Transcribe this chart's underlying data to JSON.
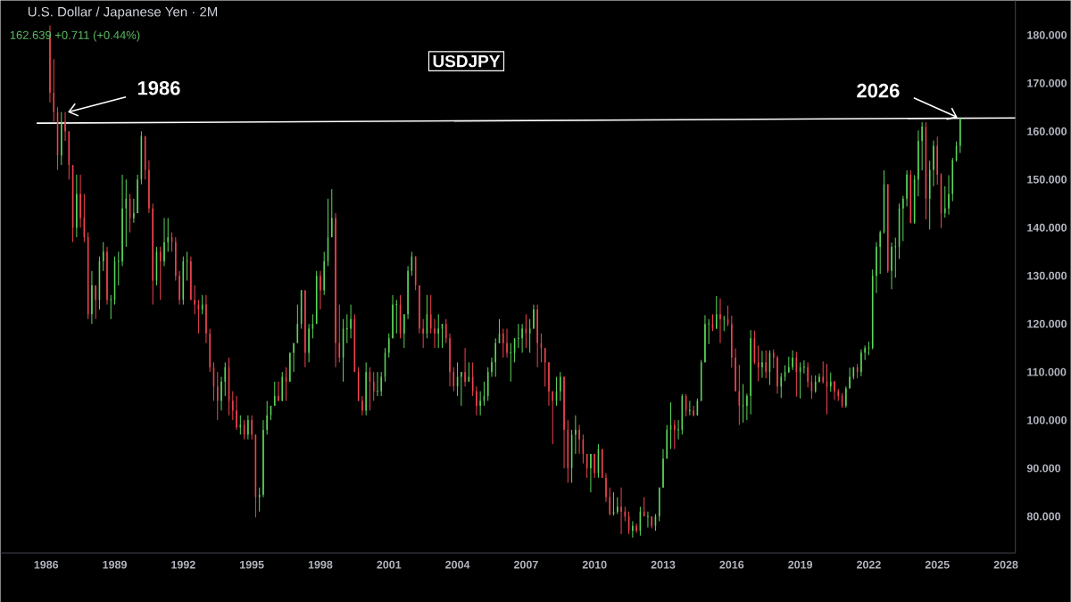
{
  "chart_data": {
    "type": "candlestick",
    "title": "U.S. Dollar / Japanese Yen · 2M",
    "subtitle": "162.639 +0.711 (+0.44%)",
    "colors": [
      "#f0444f",
      "#f0444f",
      "#f0444f",
      "#5bd65b",
      "#f0444f",
      "#f0444f",
      "#f0444f",
      "#5bd65b",
      "#f0444f",
      "#f0444f",
      "#f0444f",
      "#5bd65b",
      "#f0444f",
      "#5bd65b",
      "#5bd65b",
      "#f0444f",
      "#5bd65b",
      "#5bd65b",
      "#5bd65b",
      "#5bd65b",
      "#5bd65b",
      "#f0444f",
      "#5bd65b",
      "#5bd65b",
      "#5bd65b",
      "#f0444f",
      "#f0444f",
      "#f0444f",
      "#5bd65b",
      "#f0444f",
      "#5bd65b",
      "#5bd65b",
      "#f0444f",
      "#f0444f",
      "#f0444f",
      "#5bd65b",
      "#5bd65b",
      "#f0444f",
      "#f0444f",
      "#f0444f",
      "#5bd65b",
      "#f0444f",
      "#f0444f",
      "#f0444f",
      "#f0444f",
      "#5bd65b",
      "#5bd65b",
      "#f0444f",
      "#f0444f",
      "#f0444f",
      "#5bd65b",
      "#f0444f",
      "#5bd65b",
      "#f0444f",
      "#f0444f",
      "#5bd65b",
      "#5bd65b",
      "#5bd65b",
      "#5bd65b",
      "#5bd65b",
      "#f0444f",
      "#5bd65b",
      "#f0444f",
      "#5bd65b",
      "#5bd65b",
      "#5bd65b",
      "#5bd65b",
      "#f0444f",
      "#5bd65b",
      "#5bd65b",
      "#5bd65b",
      "#f0444f",
      "#5bd65b",
      "#5bd65b",
      "#5bd65b",
      "#f0444f",
      "#f0444f",
      "#5bd65b",
      "#5bd65b",
      "#5bd65b",
      "#f0444f",
      "#f0444f",
      "#f0444f",
      "#5bd65b",
      "#f0444f",
      "#f0444f",
      "#5bd65b",
      "#5bd65b",
      "#5bd65b",
      "#5bd65b",
      "#5bd65b",
      "#5bd65b",
      "#f0444f",
      "#5bd65b",
      "#5bd65b",
      "#5bd65b",
      "#f0444f",
      "#f0444f",
      "#f0444f",
      "#5bd65b",
      "#f0444f",
      "#f0444f",
      "#5bd65b",
      "#5bd65b",
      "#f0444f",
      "#f0444f",
      "#f0444f",
      "#5bd65b",
      "#5bd65b",
      "#f0444f",
      "#5bd65b",
      "#f0444f",
      "#f0444f",
      "#5bd65b",
      "#5bd65b",
      "#5bd65b",
      "#5bd65b",
      "#5bd65b",
      "#5bd65b",
      "#f0444f",
      "#f0444f",
      "#5bd65b",
      "#5bd65b",
      "#5bd65b",
      "#5bd65b",
      "#f0444f",
      "#5bd65b",
      "#5bd65b",
      "#f0444f",
      "#f0444f",
      "#f0444f",
      "#f0444f",
      "#f0444f",
      "#5bd65b",
      "#5bd65b",
      "#f0444f",
      "#f0444f",
      "#5bd65b",
      "#5bd65b",
      "#f0444f",
      "#f0444f",
      "#f0444f",
      "#5bd65b",
      "#f0444f",
      "#5bd65b",
      "#f0444f",
      "#f0444f",
      "#f0444f",
      "#5bd65b",
      "#5bd65b",
      "#f0444f",
      "#f0444f",
      "#f0444f",
      "#5bd65b",
      "#f0444f",
      "#5bd65b",
      "#f0444f",
      "#5bd65b",
      "#f0444f",
      "#5bd65b",
      "#5bd65b",
      "#5bd65b",
      "#5bd65b",
      "#5bd65b",
      "#f0444f",
      "#5bd65b",
      "#5bd65b",
      "#f0444f",
      "#5bd65b",
      "#f0444f",
      "#5bd65b",
      "#5bd65b",
      "#5bd65b",
      "#5bd65b",
      "#f0444f",
      "#5bd65b",
      "#f0444f",
      "#5bd65b",
      "#f0444f",
      "#f0444f",
      "#f0444f",
      "#f0444f",
      "#5bd65b",
      "#5bd65b",
      "#5bd65b",
      "#f0444f",
      "#f0444f",
      "#5bd65b",
      "#f0444f",
      "#5bd65b",
      "#f0444f",
      "#f0444f",
      "#5bd65b",
      "#5bd65b",
      "#5bd65b",
      "#5bd65b",
      "#f0444f",
      "#5bd65b",
      "#5bd65b",
      "#f0444f",
      "#f0444f",
      "#5bd65b",
      "#5bd65b",
      "#f0444f",
      "#f0444f",
      "#5bd65b",
      "#f0444f",
      "#f0444f",
      "#f0444f",
      "#5bd65b",
      "#5bd65b",
      "#5bd65b",
      "#f0444f",
      "#5bd65b",
      "#5bd65b",
      "#5bd65b",
      "#5bd65b",
      "#5bd65b",
      "#5bd65b",
      "#5bd65b",
      "#f0444f",
      "#5bd65b",
      "#5bd65b",
      "#5bd65b",
      "#5bd65b",
      "#5bd65b",
      "#f0444f",
      "#5bd65b",
      "#5bd65b",
      "#5bd65b",
      "#f0444f",
      "#5bd65b",
      "#5bd65b",
      "#f0444f",
      "#f0444f",
      "#5bd65b",
      "#5bd65b",
      "#5bd65b",
      "#5bd65b",
      "#5bd65b"
    ],
    "x": [
      "1986-03",
      "1986-05",
      "1986-07",
      "1986-09",
      "1986-11",
      "1987-01",
      "1987-03",
      "1987-05",
      "1987-07",
      "1987-09",
      "1987-11",
      "1988-01",
      "1988-03",
      "1988-05",
      "1988-07",
      "1988-09",
      "1988-11",
      "1989-01",
      "1989-03",
      "1989-05",
      "1989-07",
      "1989-09",
      "1989-11",
      "1990-01",
      "1990-03",
      "1990-05",
      "1990-07",
      "1990-09",
      "1990-11",
      "1991-01",
      "1991-03",
      "1991-05",
      "1991-07",
      "1991-09",
      "1991-11",
      "1992-01",
      "1992-03",
      "1992-05",
      "1992-07",
      "1992-09",
      "1992-11",
      "1993-01",
      "1993-03",
      "1993-05",
      "1993-07",
      "1993-09",
      "1993-11",
      "1994-01",
      "1994-03",
      "1994-05",
      "1994-07",
      "1994-09",
      "1994-11",
      "1995-01",
      "1995-03",
      "1995-05",
      "1995-07",
      "1995-09",
      "1995-11",
      "1996-01",
      "1996-03",
      "1996-05",
      "1996-07",
      "1996-09",
      "1996-11",
      "1997-01",
      "1997-03",
      "1997-05",
      "1997-07",
      "1997-09",
      "1997-11",
      "1998-01",
      "1998-03",
      "1998-05",
      "1998-07",
      "1998-09",
      "1998-11",
      "1999-01",
      "1999-03",
      "1999-05",
      "1999-07",
      "1999-09",
      "1999-11",
      "2000-01",
      "2000-03",
      "2000-05",
      "2000-07",
      "2000-09",
      "2000-11",
      "2001-01",
      "2001-03",
      "2001-05",
      "2001-07",
      "2001-09",
      "2001-11",
      "2002-01",
      "2002-03",
      "2002-05",
      "2002-07",
      "2002-09",
      "2002-11",
      "2003-01",
      "2003-03",
      "2003-05",
      "2003-07",
      "2003-09",
      "2003-11",
      "2004-01",
      "2004-03",
      "2004-05",
      "2004-07",
      "2004-09",
      "2004-11",
      "2005-01",
      "2005-03",
      "2005-05",
      "2005-07",
      "2005-09",
      "2005-11",
      "2006-01",
      "2006-03",
      "2006-05",
      "2006-07",
      "2006-09",
      "2006-11",
      "2007-01",
      "2007-03",
      "2007-05",
      "2007-07",
      "2007-09",
      "2007-11",
      "2008-01",
      "2008-03",
      "2008-05",
      "2008-07",
      "2008-09",
      "2008-11",
      "2009-01",
      "2009-03",
      "2009-05",
      "2009-07",
      "2009-09",
      "2009-11",
      "2010-01",
      "2010-03",
      "2010-05",
      "2010-07",
      "2010-09",
      "2010-11",
      "2011-01",
      "2011-03",
      "2011-05",
      "2011-07",
      "2011-09",
      "2011-11",
      "2012-01",
      "2012-03",
      "2012-05",
      "2012-07",
      "2012-09",
      "2012-11",
      "2013-01",
      "2013-03",
      "2013-05",
      "2013-07",
      "2013-09",
      "2013-11",
      "2014-01",
      "2014-03",
      "2014-05",
      "2014-07",
      "2014-09",
      "2014-11",
      "2015-01",
      "2015-03",
      "2015-05",
      "2015-07",
      "2015-09",
      "2015-11",
      "2016-01",
      "2016-03",
      "2016-05",
      "2016-07",
      "2016-09",
      "2016-11",
      "2017-01",
      "2017-03",
      "2017-05",
      "2017-07",
      "2017-09",
      "2017-11",
      "2018-01",
      "2018-03",
      "2018-05",
      "2018-07",
      "2018-09",
      "2018-11",
      "2019-01",
      "2019-03",
      "2019-05",
      "2019-07",
      "2019-09",
      "2019-11",
      "2020-01",
      "2020-03",
      "2020-05",
      "2020-07",
      "2020-09",
      "2020-11",
      "2021-01",
      "2021-03",
      "2021-05",
      "2021-07",
      "2021-09",
      "2021-11",
      "2022-01",
      "2022-03",
      "2022-05",
      "2022-07",
      "2022-09",
      "2022-11",
      "2023-01",
      "2023-03",
      "2023-05",
      "2023-07",
      "2023-09",
      "2023-11",
      "2024-01",
      "2024-03",
      "2024-05",
      "2024-07",
      "2024-09",
      "2024-11",
      "2025-01",
      "2025-03",
      "2025-05",
      "2025-07",
      "2025-09",
      "2025-11",
      "2026-01"
    ],
    "ohlc": [
      [
        180,
        182,
        166,
        168
      ],
      [
        168,
        175,
        162,
        164
      ],
      [
        164,
        165,
        152,
        155
      ],
      [
        155,
        164,
        153,
        162
      ],
      [
        162,
        164,
        158,
        160
      ],
      [
        160,
        160,
        150,
        153
      ],
      [
        153,
        153,
        137,
        140
      ],
      [
        140,
        151,
        138,
        147
      ],
      [
        147,
        151,
        140,
        142
      ],
      [
        142,
        147,
        137,
        138
      ],
      [
        138,
        139,
        121,
        122
      ],
      [
        122,
        131,
        120,
        128
      ],
      [
        128,
        128,
        121,
        125
      ],
      [
        125,
        134,
        123,
        133
      ],
      [
        133,
        137,
        131,
        135
      ],
      [
        135,
        136,
        124,
        125
      ],
      [
        125,
        126,
        121,
        125
      ],
      [
        125,
        134,
        124,
        133
      ],
      [
        133,
        135,
        128,
        133
      ],
      [
        133,
        151,
        132,
        144
      ],
      [
        144,
        150,
        136,
        146
      ],
      [
        146,
        147,
        139,
        142
      ],
      [
        142,
        146,
        141,
        143
      ],
      [
        143,
        151,
        143,
        150
      ],
      [
        150,
        160,
        149,
        159
      ],
      [
        159,
        159,
        150,
        152
      ],
      [
        152,
        154,
        143,
        144
      ],
      [
        144,
        145,
        124,
        129
      ],
      [
        129,
        136,
        128,
        135
      ],
      [
        135,
        136,
        125,
        133
      ],
      [
        133,
        142,
        132,
        137
      ],
      [
        137,
        142,
        135,
        138
      ],
      [
        138,
        139,
        135,
        137
      ],
      [
        137,
        138,
        129,
        130
      ],
      [
        130,
        131,
        124,
        125
      ],
      [
        125,
        134,
        124,
        133
      ],
      [
        133,
        135,
        129,
        133
      ],
      [
        133,
        134,
        125,
        125
      ],
      [
        125,
        128,
        122,
        124
      ],
      [
        124,
        125,
        118,
        123
      ],
      [
        123,
        126,
        122,
        124
      ],
      [
        124,
        126,
        116,
        118
      ],
      [
        118,
        119,
        110,
        111
      ],
      [
        111,
        112,
        104,
        107
      ],
      [
        107,
        110,
        100,
        104
      ],
      [
        104,
        109,
        102,
        108
      ],
      [
        108,
        112,
        105,
        111
      ],
      [
        111,
        113,
        101,
        104
      ],
      [
        104,
        106,
        100,
        102
      ],
      [
        102,
        105,
        98,
        98.5
      ],
      [
        98.5,
        101,
        97,
        99
      ],
      [
        99,
        100,
        96,
        97
      ],
      [
        97,
        101,
        96,
        100
      ],
      [
        100,
        101,
        96,
        97
      ],
      [
        97,
        97,
        79.8,
        84
      ],
      [
        84,
        86,
        81,
        84.5
      ],
      [
        84.5,
        100,
        84,
        98
      ],
      [
        98,
        104,
        97,
        101
      ],
      [
        101,
        103,
        100,
        103
      ],
      [
        103,
        108,
        103,
        105
      ],
      [
        105,
        108,
        104,
        104
      ],
      [
        104,
        110,
        104,
        109
      ],
      [
        109,
        111,
        104,
        108
      ],
      [
        108,
        114,
        108,
        114
      ],
      [
        114,
        116,
        110,
        116
      ],
      [
        116,
        124,
        116,
        120
      ],
      [
        120,
        127,
        119,
        127
      ],
      [
        127,
        127,
        111,
        114
      ],
      [
        114,
        120,
        112,
        119
      ],
      [
        119,
        122,
        117,
        120
      ],
      [
        120,
        131,
        120,
        130
      ],
      [
        130,
        131,
        123,
        127
      ],
      [
        127,
        135,
        126,
        133
      ],
      [
        133,
        146,
        132,
        138
      ],
      [
        138,
        148,
        138,
        142
      ],
      [
        142,
        143,
        111,
        116
      ],
      [
        116,
        124,
        112,
        113
      ],
      [
        113,
        121,
        108,
        119
      ],
      [
        119,
        122,
        116,
        119
      ],
      [
        119,
        124,
        117,
        121
      ],
      [
        121,
        122,
        110,
        110
      ],
      [
        110,
        111,
        104,
        104
      ],
      [
        104,
        105,
        101,
        102
      ],
      [
        102,
        112,
        101,
        110
      ],
      [
        110,
        111,
        102,
        108
      ],
      [
        108,
        110,
        104,
        106
      ],
      [
        106,
        110,
        105,
        106
      ],
      [
        106,
        110,
        105,
        109
      ],
      [
        109,
        115,
        108,
        114
      ],
      [
        114,
        118,
        113,
        117
      ],
      [
        117,
        126,
        117,
        124
      ],
      [
        124,
        125,
        118,
        124
      ],
      [
        124,
        126,
        117,
        118
      ],
      [
        118,
        122,
        115,
        122
      ],
      [
        122,
        132,
        121,
        131
      ],
      [
        131,
        135,
        130,
        134
      ],
      [
        134,
        134,
        127,
        128
      ],
      [
        128,
        128,
        118,
        119
      ],
      [
        119,
        121,
        115,
        118
      ],
      [
        118,
        126,
        117,
        122
      ],
      [
        122,
        126,
        118,
        119
      ],
      [
        119,
        121,
        115,
        118
      ],
      [
        118,
        122,
        115,
        119
      ],
      [
        119,
        120,
        115,
        120
      ],
      [
        120,
        121,
        116,
        117
      ],
      [
        117,
        118,
        107,
        110
      ],
      [
        110,
        111,
        106,
        107
      ],
      [
        107,
        112,
        105,
        109
      ],
      [
        109,
        110,
        103,
        110
      ],
      [
        110,
        115,
        107,
        108
      ],
      [
        108,
        112,
        108,
        109
      ],
      [
        109,
        112,
        105,
        106
      ],
      [
        106,
        107,
        101,
        103
      ],
      [
        103,
        106,
        101,
        104
      ],
      [
        104,
        108,
        103,
        105
      ],
      [
        105,
        111,
        104,
        110
      ],
      [
        110,
        113,
        109,
        112
      ],
      [
        112,
        117,
        109,
        116
      ],
      [
        116,
        121,
        116,
        118
      ],
      [
        118,
        119,
        113,
        116
      ],
      [
        116,
        119,
        113,
        114
      ],
      [
        114,
        116,
        108,
        114
      ],
      [
        114,
        117,
        112,
        117
      ],
      [
        117,
        120,
        115,
        117
      ],
      [
        117,
        120,
        114,
        119
      ],
      [
        119,
        122,
        115,
        118
      ],
      [
        118,
        121,
        114,
        119
      ],
      [
        119,
        124,
        119,
        123
      ],
      [
        123,
        124,
        111,
        116
      ],
      [
        116,
        118,
        112,
        115
      ],
      [
        115,
        115,
        107,
        112
      ],
      [
        112,
        112,
        103,
        106
      ],
      [
        106,
        106,
        95,
        104
      ],
      [
        104,
        109,
        103,
        106
      ],
      [
        106,
        110,
        104,
        109
      ],
      [
        109,
        109,
        90,
        98
      ],
      [
        98,
        100,
        87,
        90
      ],
      [
        90,
        98,
        87,
        97
      ],
      [
        97,
        101,
        93,
        98
      ],
      [
        98,
        99,
        93,
        96
      ],
      [
        96,
        97,
        91,
        93
      ],
      [
        93,
        93,
        88,
        90
      ],
      [
        90,
        93,
        85,
        93
      ],
      [
        93,
        93,
        88,
        89
      ],
      [
        89,
        95,
        88,
        94
      ],
      [
        94,
        94,
        88,
        88
      ],
      [
        88,
        89,
        83,
        84
      ],
      [
        84,
        86,
        80.2,
        80.5
      ],
      [
        80.5,
        85,
        80.2,
        81
      ],
      [
        81,
        84,
        80.5,
        82
      ],
      [
        82,
        86,
        76.3,
        81
      ],
      [
        81,
        82,
        79,
        80
      ],
      [
        80,
        81,
        76.3,
        77
      ],
      [
        77,
        79,
        75.6,
        78
      ],
      [
        78,
        78.5,
        76.6,
        77
      ],
      [
        77,
        82,
        76,
        81
      ],
      [
        81,
        84,
        80,
        80
      ],
      [
        80,
        81,
        77.7,
        80
      ],
      [
        80,
        80,
        77.5,
        78
      ],
      [
        78,
        80.5,
        77,
        80
      ],
      [
        80,
        86,
        79,
        86
      ],
      [
        86,
        94,
        86,
        92
      ],
      [
        92,
        99,
        92,
        98
      ],
      [
        98,
        103.7,
        94,
        99
      ],
      [
        99,
        100,
        94,
        98
      ],
      [
        98,
        100,
        96,
        98
      ],
      [
        98,
        105.4,
        97,
        105
      ],
      [
        105,
        105.4,
        100.8,
        102
      ],
      [
        102,
        104,
        101,
        102
      ],
      [
        102,
        103,
        100.8,
        101
      ],
      [
        101,
        104.5,
        101,
        104
      ],
      [
        104,
        112.5,
        104,
        112
      ],
      [
        112,
        121.8,
        112,
        120
      ],
      [
        120,
        121,
        115.8,
        120
      ],
      [
        120,
        122,
        118.5,
        119
      ],
      [
        119,
        125.8,
        119,
        122
      ],
      [
        122,
        125.3,
        116,
        121
      ],
      [
        121,
        121.7,
        118.5,
        121
      ],
      [
        121,
        123.8,
        119.5,
        120
      ],
      [
        120,
        121.7,
        110.9,
        113
      ],
      [
        113,
        114.9,
        106,
        106
      ],
      [
        106,
        111.5,
        99,
        103
      ],
      [
        103,
        107.5,
        99.5,
        103
      ],
      [
        103,
        105.5,
        100,
        105
      ],
      [
        105,
        118.7,
        101.2,
        117
      ],
      [
        117,
        118.6,
        111.6,
        112
      ],
      [
        112,
        115.5,
        108.1,
        111
      ],
      [
        111,
        114.4,
        108.8,
        112
      ],
      [
        112,
        114.5,
        108.7,
        110
      ],
      [
        110,
        114.5,
        107.3,
        114
      ],
      [
        114,
        114.7,
        110.8,
        113
      ],
      [
        113,
        113.4,
        105.5,
        107
      ],
      [
        107,
        109.8,
        104.6,
        109
      ],
      [
        109,
        111.4,
        108.1,
        110
      ],
      [
        110,
        113.2,
        109.8,
        111
      ],
      [
        111,
        114.5,
        110.4,
        113
      ],
      [
        113,
        114.2,
        104.9,
        110
      ],
      [
        110,
        112,
        104.5,
        111
      ],
      [
        111,
        112.4,
        109.7,
        111
      ],
      [
        111,
        112,
        106.8,
        108
      ],
      [
        108,
        109.3,
        104.4,
        106
      ],
      [
        106,
        109.3,
        105.7,
        108
      ],
      [
        108,
        109.7,
        107.8,
        109
      ],
      [
        109,
        112.2,
        107.6,
        108
      ],
      [
        108,
        111.7,
        101.2,
        107
      ],
      [
        107,
        109.9,
        105.9,
        108
      ],
      [
        108,
        108.2,
        104.2,
        106
      ],
      [
        106,
        106.5,
        104,
        105
      ],
      [
        105,
        105.6,
        102.6,
        103
      ],
      [
        103,
        107,
        102.6,
        106.6
      ],
      [
        106.6,
        110.9,
        106.6,
        109
      ],
      [
        109,
        111,
        108.5,
        111
      ],
      [
        111,
        111.7,
        108.7,
        110
      ],
      [
        110,
        114.7,
        109.1,
        114
      ],
      [
        114,
        115.5,
        112.5,
        115
      ],
      [
        115,
        116.3,
        113.5,
        115
      ],
      [
        115,
        131.3,
        114.7,
        130
      ],
      [
        130,
        137,
        126.4,
        136
      ],
      [
        136,
        139.4,
        130.4,
        139
      ],
      [
        139,
        151.9,
        138.8,
        149
      ],
      [
        149,
        149,
        130.6,
        131
      ],
      [
        131,
        136.9,
        127.2,
        136
      ],
      [
        136,
        137.9,
        129.6,
        136
      ],
      [
        136,
        145,
        133.5,
        144
      ],
      [
        144,
        146.6,
        137.2,
        146
      ],
      [
        146,
        151.9,
        144.4,
        151
      ],
      [
        151,
        151.9,
        140.9,
        141
      ],
      [
        141,
        150.9,
        140.8,
        150
      ],
      [
        150,
        160.2,
        146.5,
        158
      ],
      [
        158,
        161.9,
        151.9,
        161
      ],
      [
        161,
        161.9,
        141.7,
        146
      ],
      [
        146,
        153.9,
        139.6,
        152
      ],
      [
        152,
        158.1,
        148.6,
        157
      ],
      [
        157,
        158.9,
        148.9,
        151
      ],
      [
        151,
        151.3,
        139.9,
        143
      ],
      [
        143,
        148.6,
        142.1,
        144
      ],
      [
        144,
        150.9,
        142.7,
        147
      ],
      [
        147,
        154.5,
        145.5,
        154
      ],
      [
        154,
        157.9,
        153.7,
        157
      ],
      [
        157,
        162.9,
        155.5,
        162.6
      ]
    ],
    "series": [
      {
        "type": "line",
        "color": "#ffffff",
        "x": [
          "1985-08",
          "2028-06"
        ],
        "values": [
          161.7,
          162.8
        ]
      }
    ],
    "xlim": [
      "1984-01",
      "2028-06"
    ],
    "ylim": [
      72.4,
      187.2
    ],
    "xticks": [
      "1986",
      "1989",
      "1992",
      "1995",
      "1998",
      "2001",
      "2004",
      "2007",
      "2010",
      "2013",
      "2016",
      "2019",
      "2022",
      "2025",
      "2028"
    ],
    "yticks": [
      {
        "value": 80,
        "label": "80.000"
      },
      {
        "value": 90,
        "label": "90.000"
      },
      {
        "value": 100,
        "label": "100.000"
      },
      {
        "value": 110,
        "label": "110.000"
      },
      {
        "value": 120,
        "label": "120.000"
      },
      {
        "value": 130,
        "label": "130.000"
      },
      {
        "value": 140,
        "label": "140.000"
      },
      {
        "value": 150,
        "label": "150.000"
      },
      {
        "value": 160,
        "label": "160.000"
      },
      {
        "value": 170,
        "label": "170.000"
      },
      {
        "value": 180,
        "label": "180.000"
      }
    ],
    "annotations": [
      "USDJPY",
      {
        "text": "1986",
        "x": "1986-11",
        "y": 164
      },
      {
        "text": "2026",
        "x": "2026-01",
        "y": 162.9
      }
    ]
  }
}
